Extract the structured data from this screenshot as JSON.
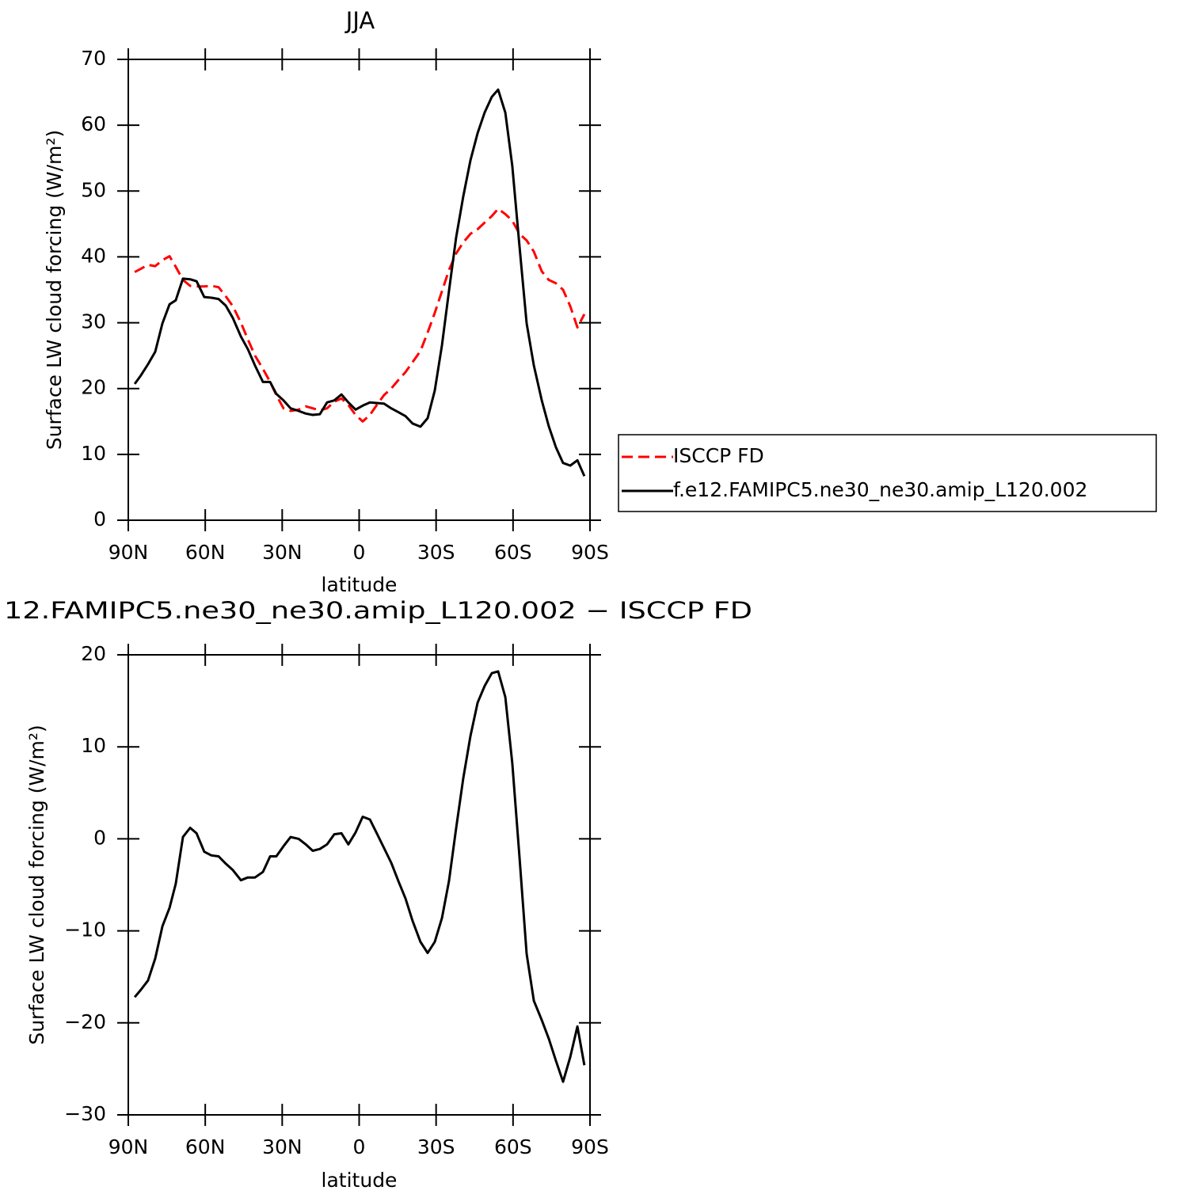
{
  "chart_data": [
    {
      "type": "line",
      "title": "JJA",
      "xlabel": "latitude",
      "ylabel": "Surface LW cloud forcing (W/m²)",
      "x": [
        87.5,
        85.1,
        82.3,
        79.5,
        76.7,
        73.9,
        71.5,
        68.7,
        65.9,
        63.4,
        60.4,
        57.6,
        54.8,
        52.0,
        49.2,
        46.1,
        43.4,
        40.6,
        37.5,
        34.7,
        32.3,
        29.5,
        26.7,
        23.6,
        20.8,
        18.1,
        15.3,
        12.5,
        9.7,
        6.9,
        4.2,
        1.4,
        -1.4,
        -4.2,
        -6.9,
        -9.7,
        -12.5,
        -15.3,
        -18.1,
        -20.8,
        -23.9,
        -26.7,
        -29.5,
        -32.3,
        -35.0,
        -37.8,
        -40.6,
        -43.4,
        -46.2,
        -48.9,
        -51.7,
        -54.2,
        -57.0,
        -59.7,
        -62.5,
        -65.3,
        -68.1,
        -71.2,
        -73.9,
        -76.7,
        -79.5,
        -82.3,
        -85.1,
        -87.8
      ],
      "series": [
        {
          "name": "ISCCP FD",
          "color": "#ff0000",
          "linestyle": "dashed",
          "values": [
            37.7,
            38.2,
            38.8,
            38.6,
            39.5,
            40.1,
            38.5,
            36.5,
            35.6,
            35.5,
            35.5,
            35.6,
            35.4,
            34.0,
            32.5,
            30.0,
            27.5,
            25.0,
            23.0,
            21.0,
            19.0,
            17.0,
            16.6,
            16.8,
            17.3,
            17.0,
            16.7,
            17.0,
            18.0,
            18.5,
            17.5,
            16.0,
            15.0,
            16.0,
            17.5,
            19.0,
            20.0,
            21.3,
            22.5,
            24.0,
            25.7,
            28.5,
            31.5,
            34.8,
            38.0,
            40.5,
            42.2,
            43.5,
            44.2,
            45.2,
            46.2,
            47.3,
            46.5,
            45.5,
            43.5,
            42.5,
            40.8,
            37.8,
            36.5,
            36.0,
            35.0,
            32.5,
            29.3,
            31.3
          ]
        },
        {
          "name": "f.e12.FAMIPC5.ne30_ne30.amip_L120.002",
          "color": "#000000",
          "linestyle": "solid",
          "values": [
            20.7,
            22.0,
            23.7,
            25.6,
            29.9,
            32.8,
            33.4,
            36.7,
            36.6,
            36.3,
            33.9,
            33.8,
            33.6,
            32.6,
            30.7,
            27.9,
            26.0,
            23.5,
            21.0,
            21.0,
            19.2,
            18.2,
            17.0,
            16.6,
            16.2,
            16.0,
            16.1,
            17.9,
            18.2,
            19.1,
            17.9,
            16.8,
            17.4,
            17.9,
            17.8,
            17.7,
            17.0,
            16.4,
            15.8,
            14.7,
            14.2,
            15.5,
            19.7,
            26.6,
            34.8,
            42.9,
            49.2,
            54.7,
            58.8,
            61.9,
            64.3,
            65.4,
            61.9,
            53.8,
            41.7,
            29.9,
            23.5,
            18.2,
            14.3,
            11.1,
            8.7,
            8.3,
            9.1,
            6.7
          ]
        }
      ],
      "legend": "right",
      "xlim": [
        90,
        -90
      ],
      "xticks": [
        {
          "value": 90,
          "label": "90N"
        },
        {
          "value": 60,
          "label": "60N"
        },
        {
          "value": 30,
          "label": "30N"
        },
        0,
        {
          "value": -30,
          "label": "30S"
        },
        {
          "value": -60,
          "label": "60S"
        },
        {
          "value": -90,
          "label": "90S"
        }
      ],
      "ylim": [
        0,
        70
      ],
      "yticks": [
        0,
        10,
        20,
        30,
        40,
        50,
        60,
        70
      ]
    },
    {
      "type": "line",
      "title": "12.FAMIPC5.ne30_ne30.amip_L120.002 − ISCCP FD",
      "xlabel": "latitude",
      "ylabel": "Surface LW cloud forcing (W/m²)",
      "x": [
        87.5,
        85.1,
        82.3,
        79.5,
        76.7,
        73.9,
        71.5,
        68.7,
        65.9,
        63.4,
        60.4,
        57.6,
        54.8,
        52.0,
        49.2,
        46.1,
        43.4,
        40.6,
        37.5,
        34.7,
        32.3,
        29.5,
        26.7,
        23.6,
        20.8,
        18.1,
        15.3,
        12.5,
        9.7,
        6.9,
        4.2,
        1.4,
        -1.4,
        -4.2,
        -6.9,
        -9.7,
        -12.5,
        -15.3,
        -18.1,
        -20.8,
        -23.9,
        -26.7,
        -29.5,
        -32.3,
        -35.0,
        -37.8,
        -40.6,
        -43.4,
        -46.2,
        -48.9,
        -51.7,
        -54.2,
        -57.0,
        -59.7,
        -62.5,
        -65.3,
        -68.1,
        -71.2,
        -73.9,
        -76.7,
        -79.5,
        -82.3,
        -85.1,
        -87.8
      ],
      "color": "#000000",
      "linestyle": "solid",
      "values": [
        -17.2,
        -16.4,
        -15.4,
        -13.0,
        -9.5,
        -7.5,
        -4.9,
        0.2,
        1.2,
        0.6,
        -1.4,
        -1.8,
        -1.9,
        -2.7,
        -3.4,
        -4.5,
        -4.2,
        -4.2,
        -3.6,
        -1.9,
        -1.9,
        -0.8,
        0.2,
        0.0,
        -0.6,
        -1.3,
        -1.1,
        -0.6,
        0.5,
        0.6,
        -0.6,
        0.7,
        2.4,
        2.1,
        0.6,
        -1.0,
        -2.6,
        -4.6,
        -6.5,
        -8.9,
        -11.2,
        -12.4,
        -11.2,
        -8.6,
        -4.6,
        1.1,
        6.6,
        11.2,
        14.8,
        16.6,
        18.0,
        18.2,
        15.4,
        8.2,
        -1.9,
        -12.5,
        -17.6,
        -19.7,
        -21.7,
        -24.1,
        -26.4,
        -23.7,
        -20.4,
        -24.6
      ],
      "xlim": [
        90,
        -90
      ],
      "xticks": [
        {
          "value": 90,
          "label": "90N"
        },
        {
          "value": 60,
          "label": "60N"
        },
        {
          "value": 30,
          "label": "30N"
        },
        0,
        {
          "value": -30,
          "label": "30S"
        },
        {
          "value": -60,
          "label": "60S"
        },
        {
          "value": -90,
          "label": "90S"
        }
      ],
      "ylim": [
        -30,
        20
      ],
      "yticks": [
        {
          "value": -30,
          "label": "−30"
        },
        {
          "value": -20,
          "label": "−20"
        },
        {
          "value": -10,
          "label": "−10"
        },
        0,
        10,
        20
      ]
    }
  ]
}
